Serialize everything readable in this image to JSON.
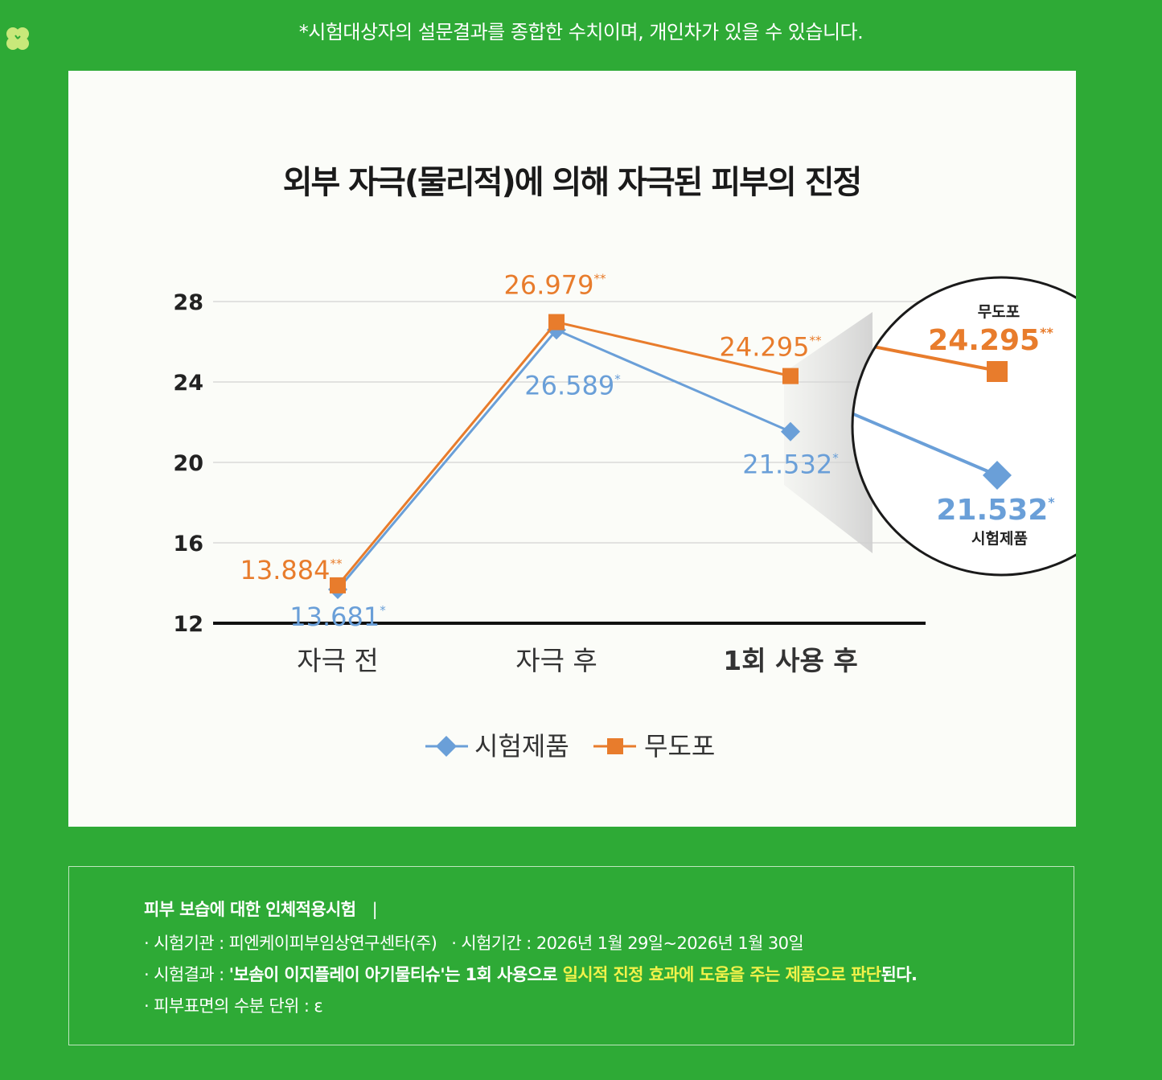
{
  "note": "*시험대상자의 설문결과를 종합한 수치이며, 개인차가 있을 수 있습니다.",
  "colors": {
    "background": "#2eaa36",
    "product": "#6a9fd8",
    "control": "#e87c2c",
    "highlight": "#f2f24a"
  },
  "chart_data": {
    "type": "line",
    "title": "외부 자극(물리적)에 의해 자극된 피부의 진정",
    "categories": [
      "자극 전",
      "자극 후",
      "1회 사용 후"
    ],
    "yticks": [
      12,
      16,
      20,
      24,
      28
    ],
    "ylim": [
      12,
      28
    ],
    "grid": true,
    "legend": "bottom-center",
    "series": [
      {
        "name": "시험제품",
        "marker": "diamond",
        "values": [
          13.681,
          26.589,
          21.532
        ],
        "labels": [
          "13.681",
          "26.589",
          "21.532"
        ],
        "sig": "*"
      },
      {
        "name": "무도포",
        "marker": "square",
        "values": [
          13.884,
          26.979,
          24.295
        ],
        "labels": [
          "13.884",
          "26.979",
          "24.295"
        ],
        "sig": "**"
      }
    ],
    "zoom": {
      "control_name": "무도포",
      "control_label": "24.295",
      "control_sig": "**",
      "product_name": "시험제품",
      "product_label": "21.532",
      "product_sig": "*"
    }
  },
  "info": {
    "heading": "피부 보습에 대한 인체적용시험",
    "separator": "|",
    "institution": "· 시험기관 : 피엔케이피부임상연구센타(주)",
    "period": "· 시험기간 : 2026년 1월 29일~2026년 1월 30일",
    "result_prefix": "· 시험결과 : ",
    "result_product": "'보솜이 이지플레이 아기물티슈'",
    "result_mid": "는 1회 사용으로 ",
    "result_highlight": "일시적 진정 효과에 도움을 주는 제품으로 판단",
    "result_suffix": "된다.",
    "unit": "· 피부표면의 수분 단위 : ε"
  }
}
